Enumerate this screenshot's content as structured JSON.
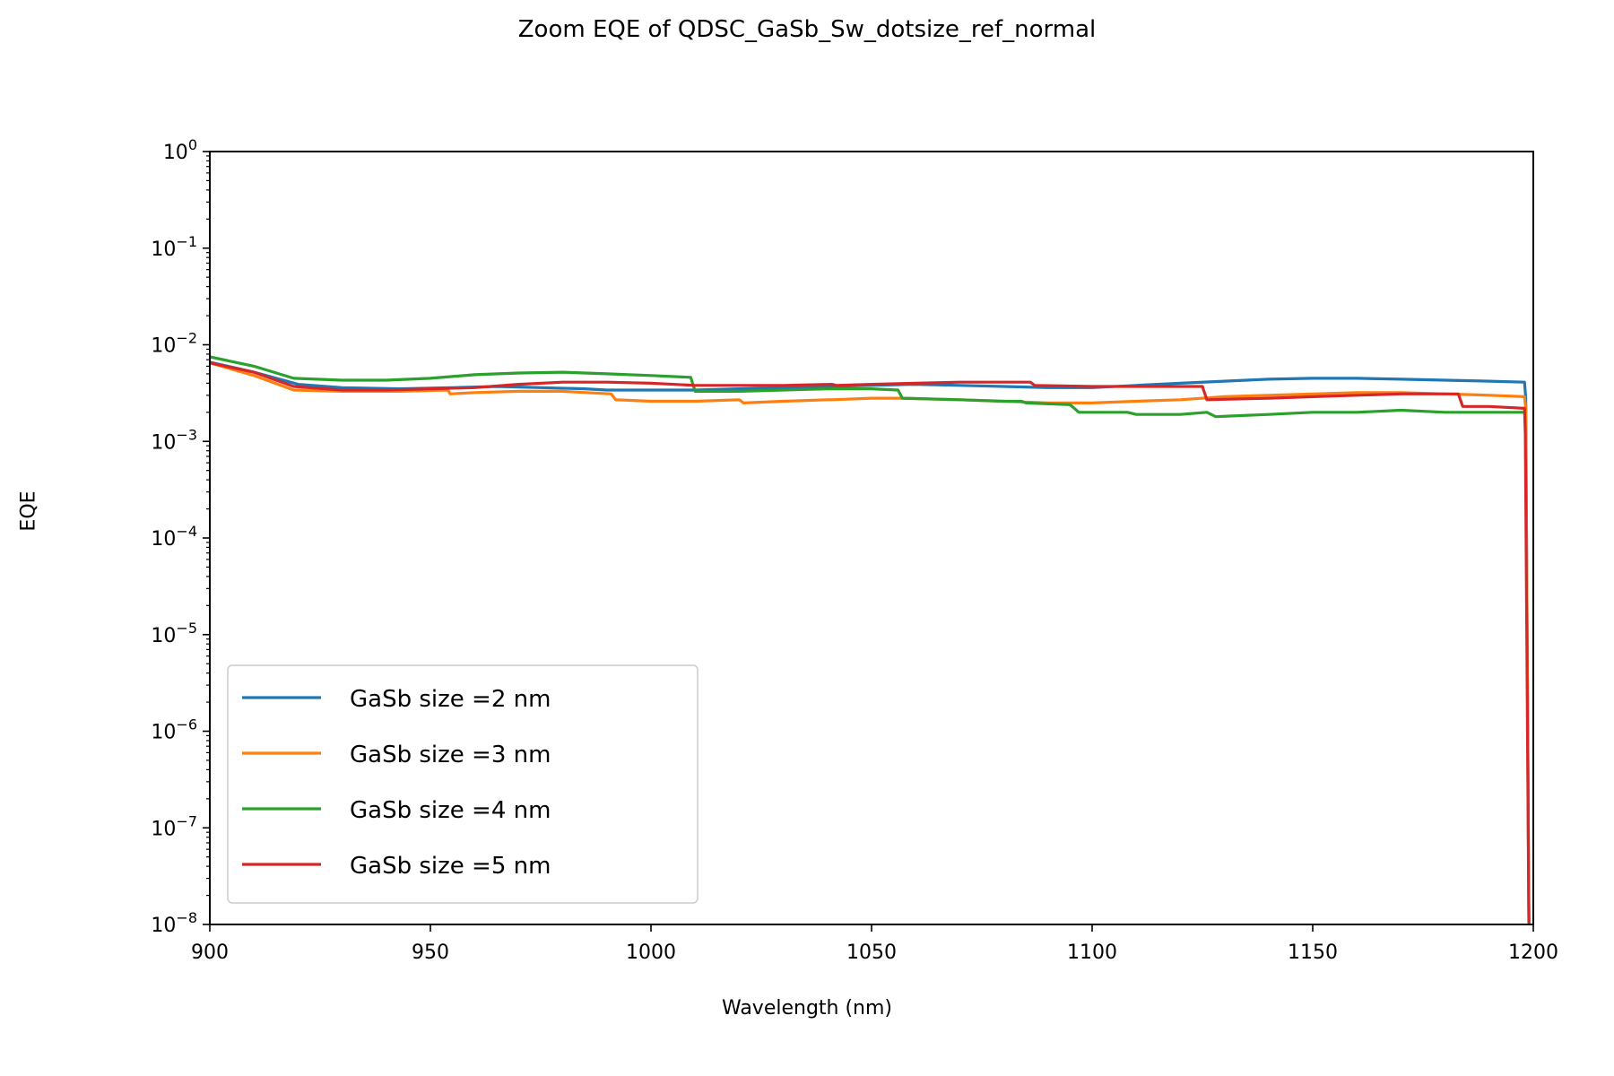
{
  "chart_data": {
    "type": "line",
    "title": "Zoom EQE of QDSC_GaSb_Sw_dotsize_ref_normal",
    "xlabel": "Wavelength (nm)",
    "ylabel": "EQE",
    "xlim": [
      900,
      1200
    ],
    "ylim": [
      1e-08,
      1
    ],
    "yscale": "log",
    "grid": false,
    "legend_position": "lower-left",
    "x_ticks": [
      "900",
      "950",
      "1000",
      "1050",
      "1100",
      "1150",
      "1200"
    ],
    "x_tick_values": [
      900,
      950,
      1000,
      1050,
      1100,
      1150,
      1200
    ],
    "y_ticks": [
      {
        "base": "10",
        "exp": "0",
        "value": 1
      },
      {
        "base": "10",
        "exp": "−1",
        "value": 0.1
      },
      {
        "base": "10",
        "exp": "−2",
        "value": 0.01
      },
      {
        "base": "10",
        "exp": "−3",
        "value": 0.001
      },
      {
        "base": "10",
        "exp": "−4",
        "value": 0.0001
      },
      {
        "base": "10",
        "exp": "−5",
        "value": 1e-05
      },
      {
        "base": "10",
        "exp": "−6",
        "value": 1e-06
      },
      {
        "base": "10",
        "exp": "−7",
        "value": 1e-07
      },
      {
        "base": "10",
        "exp": "−8",
        "value": 1e-08
      }
    ],
    "series": [
      {
        "name": "GaSb size =2 nm",
        "color": "#1f77b4",
        "x": [
          900,
          910,
          920,
          930,
          943,
          955,
          965,
          975,
          985,
          990,
          1000,
          1010,
          1020,
          1030,
          1040,
          1050,
          1060,
          1070,
          1080,
          1090,
          1100,
          1110,
          1120,
          1130,
          1140,
          1150,
          1160,
          1170,
          1180,
          1190,
          1198,
          1198.3,
          1199
        ],
        "y": [
          0.0066,
          0.0052,
          0.0039,
          0.0036,
          0.0035,
          0.0036,
          0.0037,
          0.0036,
          0.0035,
          0.0034,
          0.0034,
          0.0034,
          0.0035,
          0.0036,
          0.0037,
          0.0038,
          0.0039,
          0.0038,
          0.0037,
          0.0036,
          0.0036,
          0.0038,
          0.004,
          0.0042,
          0.0044,
          0.0045,
          0.0045,
          0.0044,
          0.0043,
          0.0042,
          0.0041,
          0.0028,
          1e-08
        ]
      },
      {
        "name": "GaSb size =3 nm",
        "color": "#ff7f0e",
        "x": [
          900,
          910,
          919,
          930,
          943,
          954,
          954.5,
          960,
          970,
          980,
          991,
          992,
          1000,
          1010,
          1020,
          1021,
          1030,
          1040,
          1041,
          1050,
          1057,
          1070,
          1080,
          1090,
          1100,
          1110,
          1120,
          1130,
          1140,
          1150,
          1160,
          1170,
          1180,
          1190,
          1198,
          1198.3,
          1199
        ],
        "y": [
          0.0065,
          0.0048,
          0.0034,
          0.0033,
          0.0033,
          0.0034,
          0.0031,
          0.0032,
          0.0033,
          0.0033,
          0.0031,
          0.0027,
          0.0026,
          0.0026,
          0.0027,
          0.0025,
          0.0026,
          0.0027,
          0.0027,
          0.0028,
          0.0028,
          0.0027,
          0.0026,
          0.0025,
          0.0025,
          0.0026,
          0.0027,
          0.0029,
          0.003,
          0.0031,
          0.0032,
          0.0032,
          0.0031,
          0.003,
          0.0029,
          0.0022,
          1e-08
        ]
      },
      {
        "name": "GaSb size =4 nm",
        "color": "#2ca02c",
        "x": [
          900,
          910,
          919,
          930,
          940,
          950,
          960,
          970,
          980,
          990,
          1000,
          1009,
          1010,
          1020,
          1030,
          1040,
          1050,
          1056,
          1057,
          1070,
          1080,
          1084,
          1085,
          1095,
          1097,
          1108,
          1110,
          1120,
          1126,
          1128,
          1140,
          1150,
          1160,
          1170,
          1180,
          1190,
          1198
        ],
        "y": [
          0.0075,
          0.006,
          0.0045,
          0.0043,
          0.0043,
          0.0045,
          0.0049,
          0.0051,
          0.0052,
          0.005,
          0.0048,
          0.0046,
          0.0033,
          0.0033,
          0.0034,
          0.0035,
          0.0035,
          0.0034,
          0.0028,
          0.0027,
          0.0026,
          0.0026,
          0.0025,
          0.0024,
          0.002,
          0.002,
          0.0019,
          0.0019,
          0.002,
          0.0018,
          0.0019,
          0.002,
          0.002,
          0.0021,
          0.002,
          0.002,
          0.002
        ]
      },
      {
        "name": "GaSb size =5 nm",
        "color": "#d62728",
        "x": [
          900,
          910,
          919,
          930,
          940,
          950,
          960,
          970,
          980,
          990,
          1000,
          1010,
          1020,
          1030,
          1041,
          1042,
          1050,
          1060,
          1070,
          1080,
          1086,
          1087,
          1100,
          1110,
          1125,
          1126,
          1140,
          1150,
          1160,
          1170,
          1183,
          1184,
          1190,
          1198,
          1198.2,
          1199
        ],
        "y": [
          0.0065,
          0.0052,
          0.0037,
          0.0034,
          0.0034,
          0.0035,
          0.0036,
          0.0039,
          0.0041,
          0.0041,
          0.004,
          0.0038,
          0.0038,
          0.0038,
          0.0039,
          0.0038,
          0.0039,
          0.004,
          0.0041,
          0.0041,
          0.0041,
          0.0038,
          0.0037,
          0.0037,
          0.0037,
          0.0027,
          0.0028,
          0.0029,
          0.003,
          0.0031,
          0.0031,
          0.0023,
          0.0023,
          0.0022,
          0.0012,
          1e-08
        ]
      }
    ]
  }
}
